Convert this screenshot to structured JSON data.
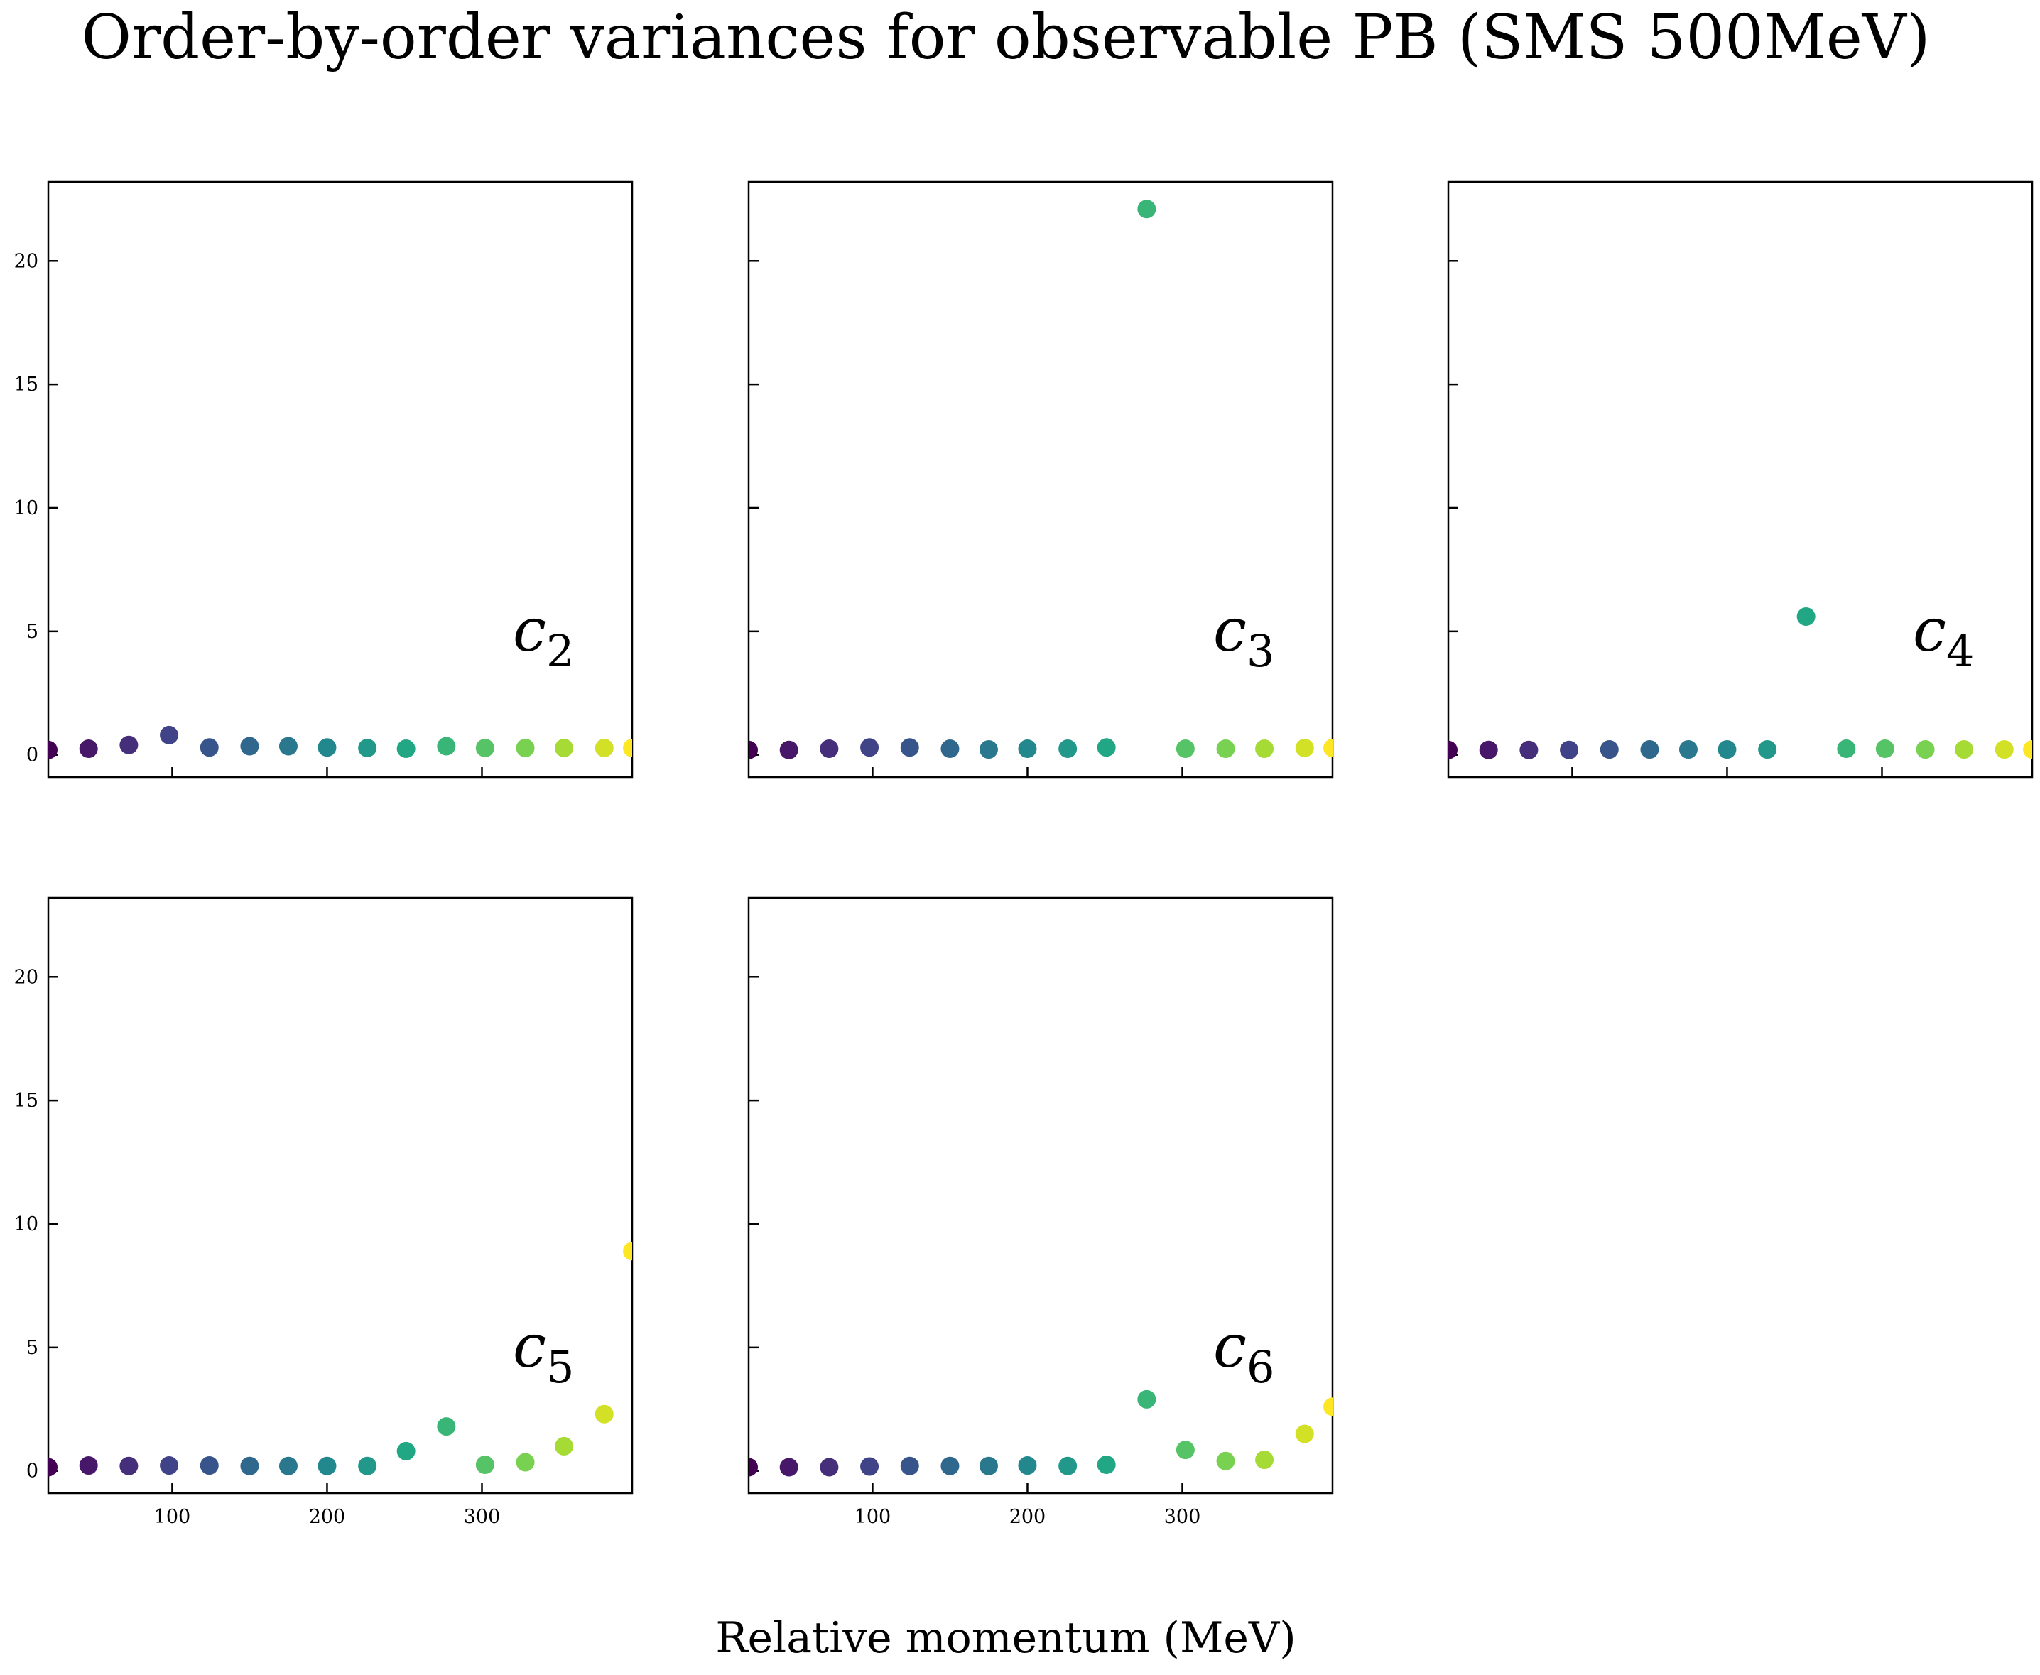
{
  "figure": {
    "title": "Order-by-order variances for observable PB (SMS 500MeV)",
    "xlabel": "Relative momentum (MeV)"
  },
  "chart_data": {
    "type": "scatter",
    "title": "Order-by-order variances for observable PB (SMS 500MeV)",
    "xlabel": "Relative momentum (MeV)",
    "ylabel": "",
    "xlim": [
      20,
      397
    ],
    "ylim": [
      -0.9,
      23.2
    ],
    "xticks": [
      100,
      200,
      300
    ],
    "yticks": [
      0,
      5,
      10,
      15,
      20
    ],
    "grid": false,
    "colormap": "viridis",
    "x": [
      20,
      46,
      72,
      98,
      124,
      150,
      175,
      200,
      226,
      251,
      277,
      302,
      328,
      353,
      379,
      397
    ],
    "panels": [
      {
        "label_main": "c",
        "label_sub": "2",
        "y": [
          0.2,
          0.25,
          0.4,
          0.8,
          0.3,
          0.35,
          0.35,
          0.3,
          0.28,
          0.25,
          0.35,
          0.28,
          0.28,
          0.28,
          0.28,
          0.28
        ]
      },
      {
        "label_main": "c",
        "label_sub": "3",
        "y": [
          0.2,
          0.2,
          0.25,
          0.3,
          0.3,
          0.25,
          0.22,
          0.25,
          0.25,
          0.3,
          22.1,
          0.25,
          0.25,
          0.25,
          0.28,
          0.28
        ]
      },
      {
        "label_main": "c",
        "label_sub": "4",
        "y": [
          0.2,
          0.2,
          0.2,
          0.2,
          0.22,
          0.22,
          0.22,
          0.22,
          0.22,
          5.6,
          0.25,
          0.25,
          0.22,
          0.22,
          0.22,
          0.22
        ]
      },
      {
        "label_main": "c",
        "label_sub": "5",
        "y": [
          0.15,
          0.22,
          0.2,
          0.22,
          0.22,
          0.2,
          0.2,
          0.2,
          0.2,
          0.8,
          1.8,
          0.25,
          0.35,
          1.0,
          2.3,
          8.9
        ]
      },
      {
        "label_main": "c",
        "label_sub": "6",
        "y": [
          0.15,
          0.15,
          0.15,
          0.18,
          0.2,
          0.2,
          0.2,
          0.22,
          0.2,
          0.25,
          2.9,
          0.85,
          0.4,
          0.45,
          1.5,
          2.6
        ]
      }
    ]
  }
}
